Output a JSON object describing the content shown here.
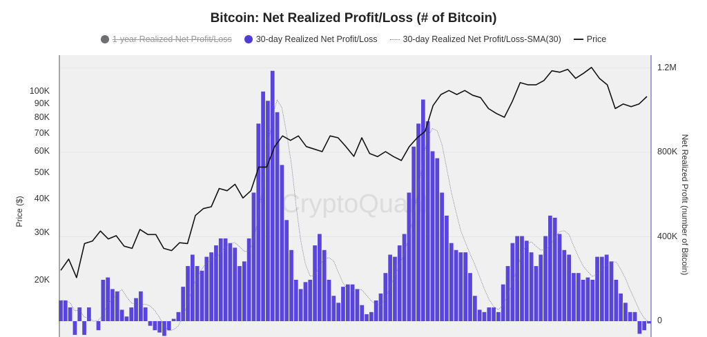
{
  "chart_data": {
    "type": "bar+line",
    "title": "Bitcoin: Net Realized Profit/Loss (# of Bitcoin)",
    "legend": [
      {
        "label": "1-year Realized Net Profit/Loss",
        "color": "#6e6e73",
        "hidden": true
      },
      {
        "label": "30-day Realized Net Profit/Loss",
        "color": "#4f3bd6"
      },
      {
        "label": "30-day Realized Net Profit/Loss-SMA(30)",
        "color": "#6a6a8a",
        "style": "dotted"
      },
      {
        "label": "Price",
        "color": "#111111"
      }
    ],
    "legend_position": "top",
    "y_left": {
      "label": "Price ($)",
      "scale": "log",
      "ticks": [
        "20K",
        "30K",
        "40K",
        "50K",
        "60K",
        "70K",
        "80K",
        "90K",
        "100K"
      ],
      "tick_values": [
        20000,
        30000,
        40000,
        50000,
        60000,
        70000,
        80000,
        90000,
        100000
      ]
    },
    "y_right": {
      "label": "Net Realized Profit (number of Bitcoin)",
      "ticks": [
        "0",
        "400K",
        "800K",
        "1.2M"
      ],
      "tick_values": [
        0,
        400000,
        800000,
        1200000
      ]
    },
    "grid": true,
    "watermark": "CryptoQuant",
    "series": [
      {
        "name": "30-day Realized Net Profit/Loss",
        "type": "bar",
        "unit": "BTC (thousands)",
        "values": [
          98,
          98,
          65,
          -65,
          65,
          -65,
          65,
          0,
          -43,
          196,
          207,
          152,
          141,
          54,
          22,
          65,
          109,
          141,
          65,
          -22,
          -43,
          -54,
          -70,
          -43,
          11,
          43,
          163,
          261,
          315,
          261,
          239,
          305,
          326,
          359,
          392,
          392,
          370,
          348,
          261,
          283,
          392,
          609,
          936,
          1088,
          1044,
          1186,
          990,
          740,
          479,
          337,
          196,
          152,
          185,
          196,
          359,
          413,
          337,
          196,
          120,
          87,
          163,
          174,
          174,
          152,
          76,
          33,
          43,
          98,
          131,
          228,
          315,
          305,
          359,
          413,
          609,
          827,
          936,
          1050,
          947,
          805,
          772,
          609,
          500,
          370,
          337,
          326,
          326,
          228,
          120,
          54,
          43,
          65,
          65,
          43,
          174,
          261,
          370,
          403,
          403,
          381,
          326,
          261,
          315,
          403,
          500,
          490,
          413,
          337,
          315,
          228,
          228,
          196,
          207,
          196,
          305,
          305,
          315,
          283,
          196,
          131,
          87,
          43,
          43,
          -60,
          -43,
          -11
        ]
      },
      {
        "name": "30-day Realized Net Profit/Loss-SMA(30)",
        "type": "line",
        "window": 30
      },
      {
        "name": "Price",
        "type": "line",
        "unit": "USD (thousands)",
        "values": [
          21.8,
          24,
          20.5,
          27.4,
          28,
          30.5,
          28.5,
          29.3,
          26.8,
          26.3,
          30.9,
          29.6,
          29.6,
          26.3,
          25.8,
          27.6,
          27.4,
          34.8,
          36.9,
          37.5,
          43.8,
          43,
          45.4,
          40.4,
          43,
          52.6,
          52.6,
          62.6,
          68.6,
          66,
          68.6,
          62.6,
          61.3,
          60,
          68.6,
          67.5,
          62.6,
          57.6,
          67.5,
          59,
          57.5,
          60,
          57.5,
          55.6,
          62.6,
          67.5,
          71.4,
          88.8,
          97.6,
          101,
          97.6,
          101,
          97,
          95,
          86.6,
          83,
          80.4,
          92,
          108,
          106,
          106,
          110,
          119.5,
          118,
          121,
          112,
          117,
          123,
          112,
          106,
          86.6,
          90,
          88,
          90,
          96
        ]
      }
    ]
  }
}
